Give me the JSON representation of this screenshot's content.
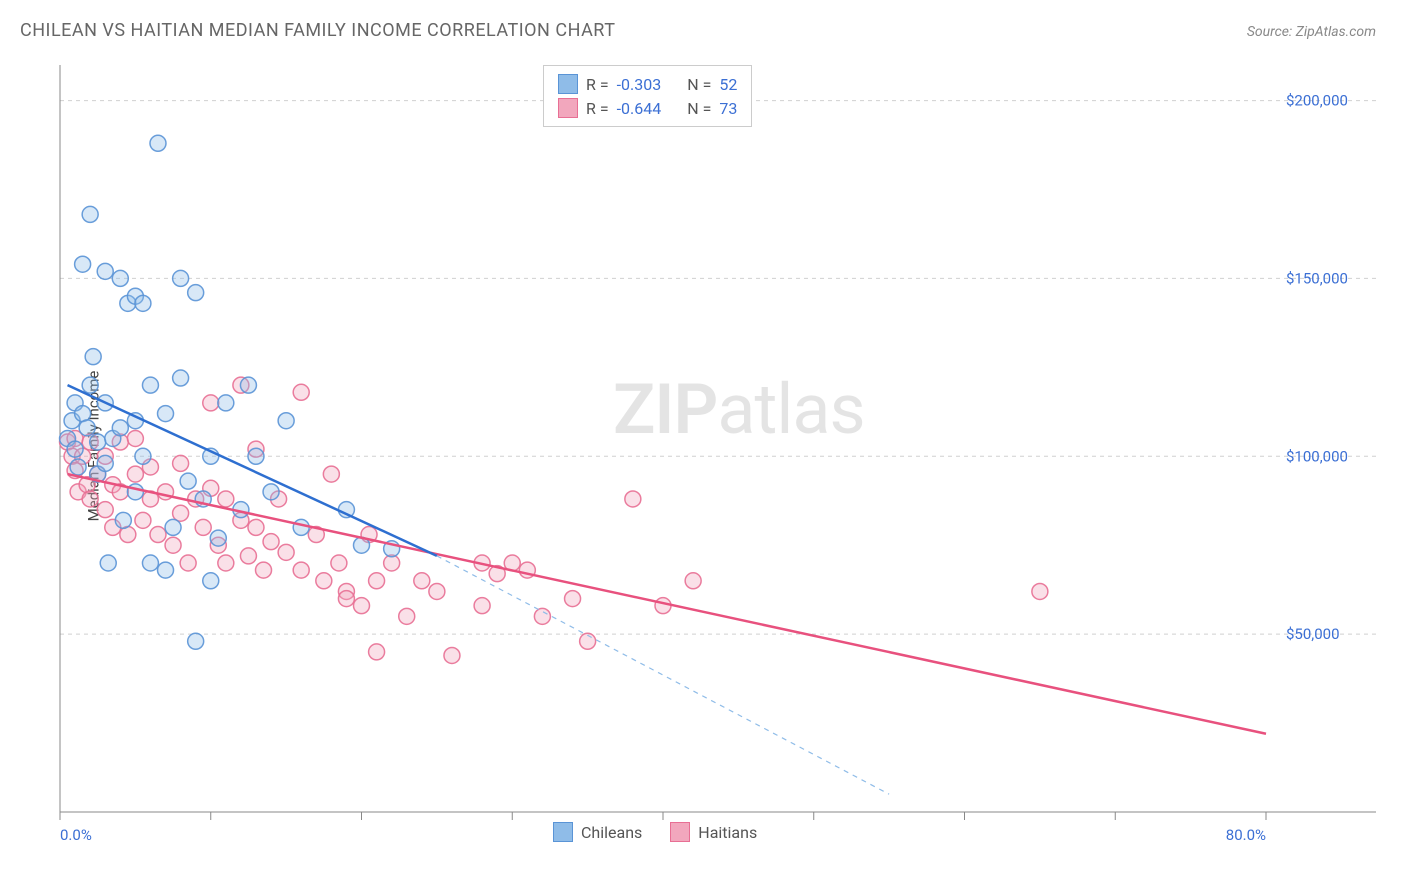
{
  "title": "CHILEAN VS HAITIAN MEDIAN FAMILY INCOME CORRELATION CHART",
  "source": "Source: ZipAtlas.com",
  "y_axis_label": "Median Family Income",
  "watermark_zip": "ZIP",
  "watermark_atlas": "atlas",
  "chart": {
    "type": "scatter",
    "background_color": "#ffffff",
    "grid_color": "#d0d0d0",
    "axis_color": "#888888",
    "tick_label_color": "#3b6fd4",
    "xlim": [
      0,
      80
    ],
    "ylim": [
      0,
      210000
    ],
    "x_ticks": [
      0,
      10,
      20,
      30,
      40,
      50,
      60,
      70,
      80
    ],
    "x_tick_labels_shown": {
      "0": "0.0%",
      "80": "80.0%"
    },
    "y_ticks": [
      50000,
      100000,
      150000,
      200000
    ],
    "y_tick_labels": [
      "$50,000",
      "$100,000",
      "$150,000",
      "$200,000"
    ],
    "marker_radius": 8,
    "marker_fill_opacity": 0.35,
    "marker_stroke_width": 1.5,
    "trend_line_width": 2.5
  },
  "series_a": {
    "label": "Chileans",
    "color_fill": "#8fbce8",
    "color_stroke": "#5a94d6",
    "R": "-0.303",
    "N": "52",
    "trend": {
      "x1": 0.5,
      "y1": 120000,
      "x2": 25,
      "y2": 72000,
      "color": "#2e6fd0"
    },
    "trend_dash": {
      "x1": 25,
      "y1": 72000,
      "x2": 55,
      "y2": 5000,
      "color": "#8fbce8"
    },
    "points": [
      [
        0.5,
        105000
      ],
      [
        0.8,
        110000
      ],
      [
        1,
        115000
      ],
      [
        1,
        102000
      ],
      [
        1.2,
        97000
      ],
      [
        1.5,
        154000
      ],
      [
        1.5,
        112000
      ],
      [
        1.8,
        108000
      ],
      [
        2,
        168000
      ],
      [
        2,
        120000
      ],
      [
        2.2,
        128000
      ],
      [
        2.5,
        104000
      ],
      [
        2.5,
        95000
      ],
      [
        3,
        152000
      ],
      [
        3,
        115000
      ],
      [
        3,
        98000
      ],
      [
        3.2,
        70000
      ],
      [
        3.5,
        105000
      ],
      [
        4,
        150000
      ],
      [
        4,
        108000
      ],
      [
        4.2,
        82000
      ],
      [
        4.5,
        143000
      ],
      [
        5,
        145000
      ],
      [
        5,
        110000
      ],
      [
        5,
        90000
      ],
      [
        5.5,
        143000
      ],
      [
        5.5,
        100000
      ],
      [
        6,
        120000
      ],
      [
        6,
        70000
      ],
      [
        6.5,
        188000
      ],
      [
        7,
        112000
      ],
      [
        7,
        68000
      ],
      [
        7.5,
        80000
      ],
      [
        8,
        150000
      ],
      [
        8,
        122000
      ],
      [
        8.5,
        93000
      ],
      [
        9,
        146000
      ],
      [
        9.5,
        88000
      ],
      [
        10,
        100000
      ],
      [
        10,
        65000
      ],
      [
        10.5,
        77000
      ],
      [
        11,
        115000
      ],
      [
        12,
        85000
      ],
      [
        12.5,
        120000
      ],
      [
        13,
        100000
      ],
      [
        14,
        90000
      ],
      [
        15,
        110000
      ],
      [
        16,
        80000
      ],
      [
        19,
        85000
      ],
      [
        20,
        75000
      ],
      [
        22,
        74000
      ],
      [
        9,
        48000
      ]
    ]
  },
  "series_b": {
    "label": "Haitians",
    "color_fill": "#f2a7bd",
    "color_stroke": "#e86f94",
    "R": "-0.644",
    "N": "73",
    "trend": {
      "x1": 0.5,
      "y1": 95000,
      "x2": 80,
      "y2": 22000,
      "color": "#e8517e"
    },
    "points": [
      [
        0.5,
        104000
      ],
      [
        0.8,
        100000
      ],
      [
        1,
        105000
      ],
      [
        1,
        96000
      ],
      [
        1.2,
        90000
      ],
      [
        1.5,
        100000
      ],
      [
        1.8,
        92000
      ],
      [
        2,
        104000
      ],
      [
        2,
        88000
      ],
      [
        2.5,
        95000
      ],
      [
        3,
        100000
      ],
      [
        3,
        85000
      ],
      [
        3.5,
        92000
      ],
      [
        3.5,
        80000
      ],
      [
        4,
        104000
      ],
      [
        4,
        90000
      ],
      [
        4.5,
        78000
      ],
      [
        5,
        95000
      ],
      [
        5,
        105000
      ],
      [
        5.5,
        82000
      ],
      [
        6,
        88000
      ],
      [
        6,
        97000
      ],
      [
        6.5,
        78000
      ],
      [
        7,
        90000
      ],
      [
        7.5,
        75000
      ],
      [
        8,
        84000
      ],
      [
        8,
        98000
      ],
      [
        8.5,
        70000
      ],
      [
        9,
        88000
      ],
      [
        9.5,
        80000
      ],
      [
        10,
        115000
      ],
      [
        10,
        91000
      ],
      [
        10.5,
        75000
      ],
      [
        11,
        70000
      ],
      [
        11,
        88000
      ],
      [
        12,
        82000
      ],
      [
        12,
        120000
      ],
      [
        12.5,
        72000
      ],
      [
        13,
        102000
      ],
      [
        13,
        80000
      ],
      [
        13.5,
        68000
      ],
      [
        14,
        76000
      ],
      [
        14.5,
        88000
      ],
      [
        15,
        73000
      ],
      [
        16,
        118000
      ],
      [
        16,
        68000
      ],
      [
        17,
        78000
      ],
      [
        17.5,
        65000
      ],
      [
        18,
        95000
      ],
      [
        18.5,
        70000
      ],
      [
        19,
        62000
      ],
      [
        19,
        60000
      ],
      [
        20,
        58000
      ],
      [
        20.5,
        78000
      ],
      [
        21,
        65000
      ],
      [
        21,
        45000
      ],
      [
        22,
        70000
      ],
      [
        23,
        55000
      ],
      [
        24,
        65000
      ],
      [
        25,
        62000
      ],
      [
        26,
        44000
      ],
      [
        28,
        70000
      ],
      [
        28,
        58000
      ],
      [
        29,
        67000
      ],
      [
        30,
        70000
      ],
      [
        31,
        68000
      ],
      [
        32,
        55000
      ],
      [
        34,
        60000
      ],
      [
        35,
        48000
      ],
      [
        38,
        88000
      ],
      [
        40,
        58000
      ],
      [
        42,
        65000
      ],
      [
        65,
        62000
      ]
    ]
  },
  "stats_box": {
    "R_label": "R =",
    "N_label": "N ="
  }
}
